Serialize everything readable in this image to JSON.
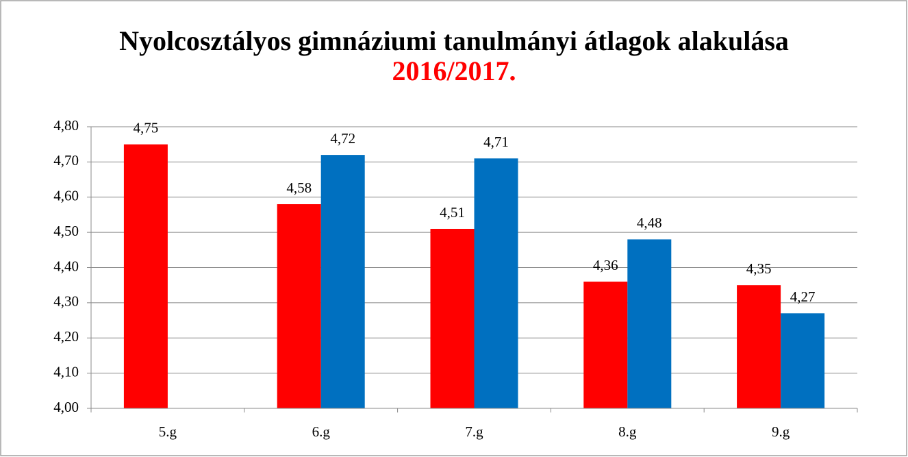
{
  "chart_data": {
    "type": "bar",
    "title": "Nyolcosztályos gimnáziumi tanulmányi átlagok alakulása",
    "subtitle": "2016/2017.",
    "categories": [
      "5.g",
      "6.g",
      "7.g",
      "8.g",
      "9.g"
    ],
    "series": [
      {
        "color": "#ff0000",
        "values": [
          4.75,
          4.58,
          4.51,
          4.36,
          4.35
        ],
        "value_labels": [
          "4,75",
          "4,58",
          "4,51",
          "4,36",
          "4,35"
        ]
      },
      {
        "color": "#0070c0",
        "values": [
          null,
          4.72,
          4.71,
          4.48,
          4.27
        ],
        "value_labels": [
          null,
          "4,72",
          "4,71",
          "4,48",
          "4,27"
        ]
      }
    ],
    "ylim": [
      4.0,
      4.8
    ],
    "yticks": [
      {
        "value": 4.0,
        "label": "4,00"
      },
      {
        "value": 4.1,
        "label": "4,10"
      },
      {
        "value": 4.2,
        "label": "4,20"
      },
      {
        "value": 4.3,
        "label": "4,30"
      },
      {
        "value": 4.4,
        "label": "4,40"
      },
      {
        "value": 4.5,
        "label": "4,50"
      },
      {
        "value": 4.6,
        "label": "4,60"
      },
      {
        "value": 4.7,
        "label": "4,70"
      },
      {
        "value": 4.8,
        "label": "4,80"
      }
    ],
    "grid": true
  }
}
